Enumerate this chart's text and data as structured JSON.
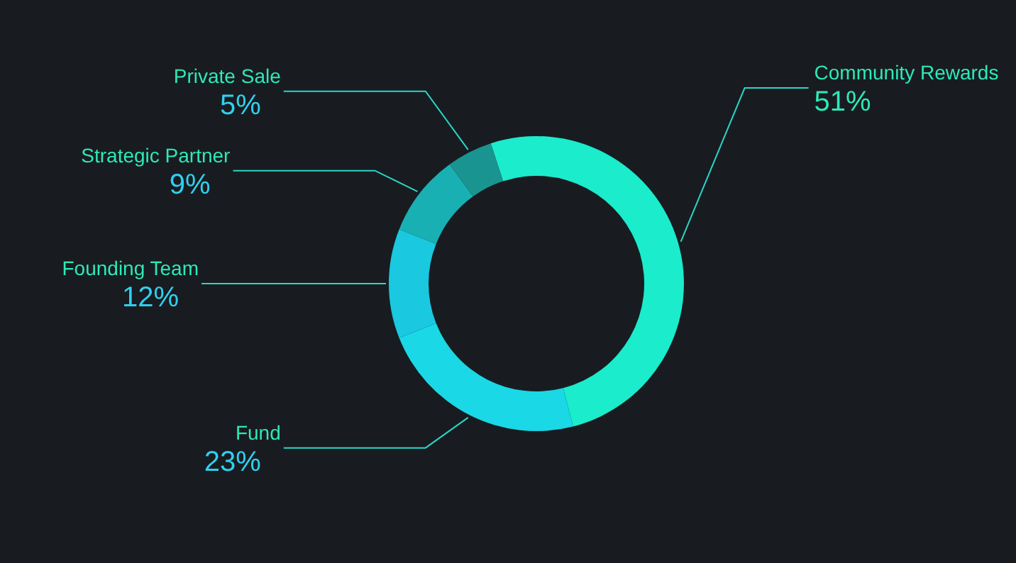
{
  "chart_data": {
    "type": "donut",
    "categories": [
      "Community Rewards",
      "Fund",
      "Founding Team",
      "Strategic Partner",
      "Private Sale"
    ],
    "values": [
      51,
      23,
      12,
      9,
      5
    ],
    "value_labels": [
      "51%",
      "23%",
      "12%",
      "9%",
      "5%"
    ],
    "colors": [
      "#1aeccc",
      "#1ad8e6",
      "#1ac8e0",
      "#19b0b4",
      "#1a9490"
    ]
  }
}
